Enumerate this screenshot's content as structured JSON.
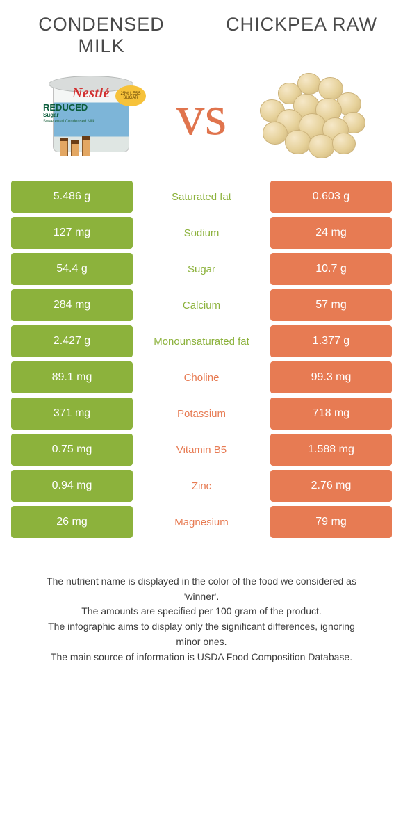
{
  "colors": {
    "green": "#8cb23c",
    "orange": "#e77b53",
    "vs_text": "#e0744d",
    "title_text": "#4a4a4a",
    "footer_text": "#3d3d3d",
    "bg": "#ffffff"
  },
  "titles": {
    "left": "CONDENSED MILK",
    "right": "CHICKPEA RAW"
  },
  "vs_label": "vs",
  "nutrients": [
    {
      "label": "Saturated fat",
      "left": "5.486 g",
      "right": "0.603 g",
      "winner": "left"
    },
    {
      "label": "Sodium",
      "left": "127 mg",
      "right": "24 mg",
      "winner": "left"
    },
    {
      "label": "Sugar",
      "left": "54.4 g",
      "right": "10.7 g",
      "winner": "left"
    },
    {
      "label": "Calcium",
      "left": "284 mg",
      "right": "57 mg",
      "winner": "left"
    },
    {
      "label": "Monounsaturated fat",
      "left": "2.427 g",
      "right": "1.377 g",
      "winner": "left"
    },
    {
      "label": "Choline",
      "left": "89.1 mg",
      "right": "99.3 mg",
      "winner": "right"
    },
    {
      "label": "Potassium",
      "left": "371 mg",
      "right": "718 mg",
      "winner": "right"
    },
    {
      "label": "Vitamin B5",
      "left": "0.75 mg",
      "right": "1.588 mg",
      "winner": "right"
    },
    {
      "label": "Zinc",
      "left": "0.94 mg",
      "right": "2.76 mg",
      "winner": "right"
    },
    {
      "label": "Magnesium",
      "left": "26 mg",
      "right": "79 mg",
      "winner": "right"
    }
  ],
  "left_image": {
    "brand": "Nestlé",
    "line1_big": "REDUCED",
    "line1_sub": "Sugar",
    "line2": "Sweetened Condensed Milk",
    "badge": "25% LESS SUGAR"
  },
  "footer": {
    "l1": "The nutrient name is displayed in the color of the food we considered as 'winner'.",
    "l2": "The amounts are specified per 100 gram of the product.",
    "l3": "The infographic aims to display only the significant differences, ignoring minor ones.",
    "l4": "The main source of information is USDA Food Composition Database."
  },
  "chickpea_positions": [
    {
      "l": 64,
      "t": 4,
      "s": 34
    },
    {
      "l": 94,
      "t": 10,
      "s": 36
    },
    {
      "l": 36,
      "t": 18,
      "s": 34
    },
    {
      "l": 120,
      "t": 32,
      "s": 36
    },
    {
      "l": 10,
      "t": 42,
      "s": 36
    },
    {
      "l": 58,
      "t": 34,
      "s": 38
    },
    {
      "l": 90,
      "t": 40,
      "s": 38
    },
    {
      "l": 34,
      "t": 56,
      "s": 38
    },
    {
      "l": 128,
      "t": 60,
      "s": 34
    },
    {
      "l": 66,
      "t": 62,
      "s": 40
    },
    {
      "l": 100,
      "t": 68,
      "s": 38
    },
    {
      "l": 14,
      "t": 74,
      "s": 36
    },
    {
      "l": 46,
      "t": 86,
      "s": 38
    },
    {
      "l": 80,
      "t": 92,
      "s": 38
    },
    {
      "l": 114,
      "t": 90,
      "s": 34
    }
  ]
}
